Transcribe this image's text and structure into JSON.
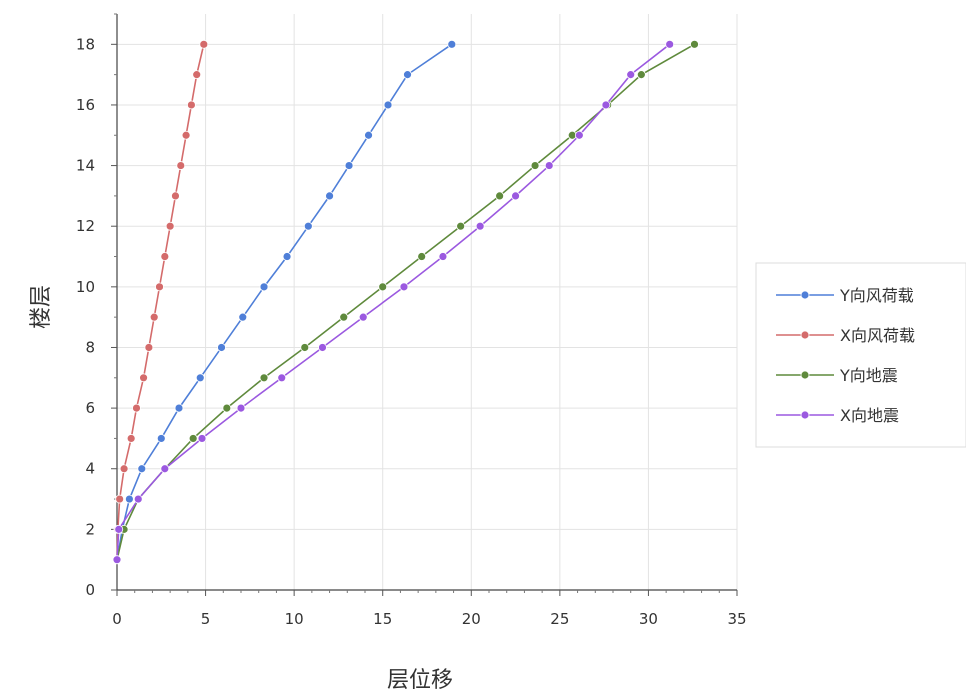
{
  "chart_data": {
    "type": "line",
    "xlabel": "层位移",
    "ylabel": "楼层",
    "xlim": [
      0,
      35
    ],
    "ylim": [
      0,
      19
    ],
    "xticks": [
      0,
      5,
      10,
      15,
      20,
      25,
      30,
      35
    ],
    "yticks": [
      0,
      2,
      4,
      6,
      8,
      10,
      12,
      14,
      16,
      18
    ],
    "grid": true,
    "legend_position": "right",
    "series": [
      {
        "name": "Y向风荷载",
        "color": "#4f7fd8",
        "points": [
          [
            0,
            1
          ],
          [
            0.3,
            2
          ],
          [
            0.7,
            3
          ],
          [
            1.4,
            4
          ],
          [
            2.5,
            5
          ],
          [
            3.5,
            6
          ],
          [
            4.7,
            7
          ],
          [
            5.9,
            8
          ],
          [
            7.1,
            9
          ],
          [
            8.3,
            10
          ],
          [
            9.6,
            11
          ],
          [
            10.8,
            12
          ],
          [
            12.0,
            13
          ],
          [
            13.1,
            14
          ],
          [
            14.2,
            15
          ],
          [
            15.3,
            16
          ],
          [
            16.4,
            17
          ],
          [
            18.9,
            18
          ]
        ]
      },
      {
        "name": "X向风荷载",
        "color": "#d46b6b",
        "points": [
          [
            0,
            1
          ],
          [
            0.05,
            2
          ],
          [
            0.15,
            3
          ],
          [
            0.4,
            4
          ],
          [
            0.8,
            5
          ],
          [
            1.1,
            6
          ],
          [
            1.5,
            7
          ],
          [
            1.8,
            8
          ],
          [
            2.1,
            9
          ],
          [
            2.4,
            10
          ],
          [
            2.7,
            11
          ],
          [
            3.0,
            12
          ],
          [
            3.3,
            13
          ],
          [
            3.6,
            14
          ],
          [
            3.9,
            15
          ],
          [
            4.2,
            16
          ],
          [
            4.5,
            17
          ],
          [
            4.9,
            18
          ]
        ]
      },
      {
        "name": "Y向地震",
        "color": "#5f8a3c",
        "points": [
          [
            0,
            1
          ],
          [
            0.4,
            2
          ],
          [
            1.2,
            3
          ],
          [
            2.7,
            4
          ],
          [
            4.3,
            5
          ],
          [
            6.2,
            6
          ],
          [
            8.3,
            7
          ],
          [
            10.6,
            8
          ],
          [
            12.8,
            9
          ],
          [
            15.0,
            10
          ],
          [
            17.2,
            11
          ],
          [
            19.4,
            12
          ],
          [
            21.6,
            13
          ],
          [
            23.6,
            14
          ],
          [
            25.7,
            15
          ],
          [
            27.7,
            16
          ],
          [
            29.6,
            17
          ],
          [
            32.6,
            18
          ]
        ]
      },
      {
        "name": "X向地震",
        "color": "#9b59e0",
        "points": [
          [
            0,
            1
          ],
          [
            0.1,
            2
          ],
          [
            1.2,
            3
          ],
          [
            2.7,
            4
          ],
          [
            4.8,
            5
          ],
          [
            7.0,
            6
          ],
          [
            9.3,
            7
          ],
          [
            11.6,
            8
          ],
          [
            13.9,
            9
          ],
          [
            16.2,
            10
          ],
          [
            18.4,
            11
          ],
          [
            20.5,
            12
          ],
          [
            22.5,
            13
          ],
          [
            24.4,
            14
          ],
          [
            26.1,
            15
          ],
          [
            27.6,
            16
          ],
          [
            29.0,
            17
          ],
          [
            31.2,
            18
          ]
        ]
      }
    ]
  }
}
